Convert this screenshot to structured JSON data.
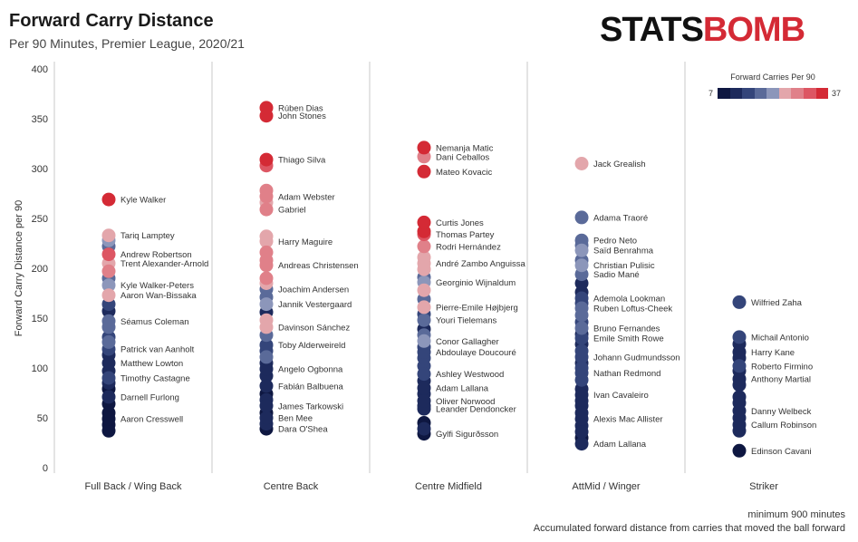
{
  "header": {
    "title": "Forward Carry Distance",
    "subtitle": "Per 90 Minutes, Premier League, 2020/21",
    "logo_part1": "STATS",
    "logo_part2": "BOMB"
  },
  "legend": {
    "title": "Forward Carries Per 90",
    "min": "7",
    "max": "37",
    "colors": [
      "#0e1741",
      "#1d2a5c",
      "#34457a",
      "#5a6a99",
      "#8c96ba",
      "#e3a6ab",
      "#e08089",
      "#dd5663",
      "#d42a35"
    ]
  },
  "notes": {
    "line1": "minimum 900 minutes",
    "line2": "Accumulated forward distance from carries that moved the ball forward"
  },
  "chart_data": {
    "type": "scatter",
    "title": "Forward Carry Distance",
    "subtitle": "Per 90 Minutes, Premier League, 2020/21",
    "xlabel": "",
    "ylabel": "Forward Carry Distance per 90",
    "ylim": [
      0,
      400
    ],
    "yticks": [
      "0",
      "50",
      "100",
      "150",
      "200",
      "250",
      "300",
      "350",
      "400"
    ],
    "categories": [
      "Full Back / Wing Back",
      "Centre Back",
      "Centre Midfield",
      "AttMid / Winger",
      "Striker"
    ],
    "grid": false,
    "legend_position": "top-right",
    "labelled_points": [
      {
        "cat": 0,
        "name": "Kyle Walker",
        "y": 269,
        "c": 36
      },
      {
        "cat": 0,
        "name": "Tariq Lamptey",
        "y": 233,
        "c": 24
      },
      {
        "cat": 0,
        "name": "Andrew Robertson",
        "y": 214,
        "c": 33
      },
      {
        "cat": 0,
        "name": "Trent Alexander-Arnold",
        "y": 205,
        "c": 25
      },
      {
        "cat": 0,
        "name": "Kyle Walker-Peters",
        "y": 183,
        "c": 21
      },
      {
        "cat": 0,
        "name": "Aaron Wan-Bissaka",
        "y": 173,
        "c": 24
      },
      {
        "cat": 0,
        "name": "Séamus Coleman",
        "y": 147,
        "c": 18
      },
      {
        "cat": 0,
        "name": "Patrick van Aanholt",
        "y": 119,
        "c": 16
      },
      {
        "cat": 0,
        "name": "Matthew Lowton",
        "y": 105,
        "c": 10
      },
      {
        "cat": 0,
        "name": "Timothy Castagne",
        "y": 90,
        "c": 14
      },
      {
        "cat": 0,
        "name": "Darnell Furlong",
        "y": 71,
        "c": 9
      },
      {
        "cat": 0,
        "name": "Aaron Cresswell",
        "y": 49,
        "c": 8
      },
      {
        "cat": 1,
        "name": "Rúben Dias",
        "y": 361,
        "c": 37
      },
      {
        "cat": 1,
        "name": "John Stones",
        "y": 353,
        "c": 36
      },
      {
        "cat": 1,
        "name": "Thiago Silva",
        "y": 309,
        "c": 36
      },
      {
        "cat": 1,
        "name": "Adam Webster",
        "y": 272,
        "c": 28
      },
      {
        "cat": 1,
        "name": "Gabriel",
        "y": 259,
        "c": 31
      },
      {
        "cat": 1,
        "name": "Harry Maguire",
        "y": 227,
        "c": 26
      },
      {
        "cat": 1,
        "name": "Andreas Christensen",
        "y": 203,
        "c": 28
      },
      {
        "cat": 1,
        "name": "Joachim Andersen",
        "y": 179,
        "c": 20
      },
      {
        "cat": 1,
        "name": "Jannik Vestergaard",
        "y": 164,
        "c": 22
      },
      {
        "cat": 1,
        "name": "Davinson Sánchez",
        "y": 141,
        "c": 24
      },
      {
        "cat": 1,
        "name": "Toby Alderweireld",
        "y": 123,
        "c": 16
      },
      {
        "cat": 1,
        "name": "Angelo Ogbonna",
        "y": 99,
        "c": 11
      },
      {
        "cat": 1,
        "name": "Fabián Balbuena",
        "y": 82,
        "c": 12
      },
      {
        "cat": 1,
        "name": "James Tarkowski",
        "y": 62,
        "c": 10
      },
      {
        "cat": 1,
        "name": "Ben Mee",
        "y": 50,
        "c": 9
      },
      {
        "cat": 1,
        "name": "Dara O'Shea",
        "y": 39,
        "c": 8
      },
      {
        "cat": 2,
        "name": "Nemanja Matic",
        "y": 321,
        "c": 36
      },
      {
        "cat": 2,
        "name": "Dani Ceballos",
        "y": 312,
        "c": 31
      },
      {
        "cat": 2,
        "name": "Mateo Kovacic",
        "y": 297,
        "c": 37
      },
      {
        "cat": 2,
        "name": "Curtis Jones",
        "y": 246,
        "c": 36
      },
      {
        "cat": 2,
        "name": "Thomas Partey",
        "y": 234,
        "c": 33
      },
      {
        "cat": 2,
        "name": "Rodri Hernández",
        "y": 222,
        "c": 31
      },
      {
        "cat": 2,
        "name": "André Zambo Anguissa",
        "y": 205,
        "c": 25
      },
      {
        "cat": 2,
        "name": "Georginio Wijnaldum",
        "y": 186,
        "c": 21
      },
      {
        "cat": 2,
        "name": "Pierre-Emile Højbjerg",
        "y": 161,
        "c": 25
      },
      {
        "cat": 2,
        "name": "Youri Tielemans",
        "y": 148,
        "c": 18
      },
      {
        "cat": 2,
        "name": "Conor Gallagher",
        "y": 127,
        "c": 21
      },
      {
        "cat": 2,
        "name": "Abdoulaye Doucouré",
        "y": 116,
        "c": 16
      },
      {
        "cat": 2,
        "name": "Ashley Westwood",
        "y": 94,
        "c": 14
      },
      {
        "cat": 2,
        "name": "Adam Lallana",
        "y": 80,
        "c": 12
      },
      {
        "cat": 2,
        "name": "Oliver Norwood",
        "y": 67,
        "c": 10
      },
      {
        "cat": 2,
        "name": "Leander Dendoncker",
        "y": 59,
        "c": 9
      },
      {
        "cat": 2,
        "name": "Gylfi Sigurðsson",
        "y": 34,
        "c": 8
      },
      {
        "cat": 3,
        "name": "Jack Grealish",
        "y": 305,
        "c": 27
      },
      {
        "cat": 3,
        "name": "Adama Traoré",
        "y": 251,
        "c": 19
      },
      {
        "cat": 3,
        "name": "Pedro Neto",
        "y": 228,
        "c": 20
      },
      {
        "cat": 3,
        "name": "Saïd Benrahma",
        "y": 218,
        "c": 22
      },
      {
        "cat": 3,
        "name": "Christian Pulisic",
        "y": 203,
        "c": 21
      },
      {
        "cat": 3,
        "name": "Sadio Mané",
        "y": 194,
        "c": 19
      },
      {
        "cat": 3,
        "name": "Ademola Lookman",
        "y": 170,
        "c": 16
      },
      {
        "cat": 3,
        "name": "Ruben Loftus-Cheek",
        "y": 160,
        "c": 17
      },
      {
        "cat": 3,
        "name": "Bruno Fernandes",
        "y": 140,
        "c": 18
      },
      {
        "cat": 3,
        "name": "Emile Smith Rowe",
        "y": 130,
        "c": 15
      },
      {
        "cat": 3,
        "name": "Johann Gudmundsson",
        "y": 111,
        "c": 13
      },
      {
        "cat": 3,
        "name": "Nathan Redmond",
        "y": 95,
        "c": 14
      },
      {
        "cat": 3,
        "name": "Ivan Cavaleiro",
        "y": 73,
        "c": 11
      },
      {
        "cat": 3,
        "name": "Alexis Mac Allister",
        "y": 49,
        "c": 10
      },
      {
        "cat": 3,
        "name": "Adam Lallana",
        "y": 24,
        "c": 9
      },
      {
        "cat": 4,
        "name": "Wilfried Zaha",
        "y": 166,
        "c": 16
      },
      {
        "cat": 4,
        "name": "Michail Antonio",
        "y": 131,
        "c": 15
      },
      {
        "cat": 4,
        "name": "Harry Kane",
        "y": 116,
        "c": 11
      },
      {
        "cat": 4,
        "name": "Roberto Firmino",
        "y": 102,
        "c": 13
      },
      {
        "cat": 4,
        "name": "Anthony Martial",
        "y": 89,
        "c": 12
      },
      {
        "cat": 4,
        "name": "Danny Welbeck",
        "y": 57,
        "c": 10
      },
      {
        "cat": 4,
        "name": "Callum Robinson",
        "y": 43,
        "c": 9
      },
      {
        "cat": 4,
        "name": "Edinson Cavani",
        "y": 17,
        "c": 8
      }
    ],
    "unlabelled_points": [
      {
        "cat": 0,
        "y": 228,
        "c": 22
      },
      {
        "cat": 0,
        "y": 222,
        "c": 20
      },
      {
        "cat": 0,
        "y": 197,
        "c": 28
      },
      {
        "cat": 0,
        "y": 190,
        "c": 20
      },
      {
        "cat": 0,
        "y": 164,
        "c": 16
      },
      {
        "cat": 0,
        "y": 157,
        "c": 12
      },
      {
        "cat": 0,
        "y": 141,
        "c": 18
      },
      {
        "cat": 0,
        "y": 131,
        "c": 14
      },
      {
        "cat": 0,
        "y": 126,
        "c": 17
      },
      {
        "cat": 0,
        "y": 113,
        "c": 9
      },
      {
        "cat": 0,
        "y": 97,
        "c": 10
      },
      {
        "cat": 0,
        "y": 85,
        "c": 9
      },
      {
        "cat": 0,
        "y": 79,
        "c": 8
      },
      {
        "cat": 0,
        "y": 64,
        "c": 8
      },
      {
        "cat": 0,
        "y": 55,
        "c": 8
      },
      {
        "cat": 0,
        "y": 43,
        "c": 7
      },
      {
        "cat": 0,
        "y": 37,
        "c": 8
      },
      {
        "cat": 1,
        "y": 303,
        "c": 35
      },
      {
        "cat": 1,
        "y": 278,
        "c": 30
      },
      {
        "cat": 1,
        "y": 266,
        "c": 26
      },
      {
        "cat": 1,
        "y": 232,
        "c": 25
      },
      {
        "cat": 1,
        "y": 216,
        "c": 29
      },
      {
        "cat": 1,
        "y": 208,
        "c": 31
      },
      {
        "cat": 1,
        "y": 190,
        "c": 30
      },
      {
        "cat": 1,
        "y": 185,
        "c": 24
      },
      {
        "cat": 1,
        "y": 171,
        "c": 18
      },
      {
        "cat": 1,
        "y": 156,
        "c": 12
      },
      {
        "cat": 1,
        "y": 148,
        "c": 24
      },
      {
        "cat": 1,
        "y": 133,
        "c": 17
      },
      {
        "cat": 1,
        "y": 117,
        "c": 15
      },
      {
        "cat": 1,
        "y": 111,
        "c": 17
      },
      {
        "cat": 1,
        "y": 105,
        "c": 9
      },
      {
        "cat": 1,
        "y": 92,
        "c": 10
      },
      {
        "cat": 1,
        "y": 74,
        "c": 8
      },
      {
        "cat": 1,
        "y": 68,
        "c": 9
      },
      {
        "cat": 1,
        "y": 55,
        "c": 8
      },
      {
        "cat": 1,
        "y": 44,
        "c": 9
      },
      {
        "cat": 2,
        "y": 237,
        "c": 36
      },
      {
        "cat": 2,
        "y": 211,
        "c": 27
      },
      {
        "cat": 2,
        "y": 199,
        "c": 24
      },
      {
        "cat": 2,
        "y": 191,
        "c": 19
      },
      {
        "cat": 2,
        "y": 178,
        "c": 25
      },
      {
        "cat": 2,
        "y": 169,
        "c": 18
      },
      {
        "cat": 2,
        "y": 154,
        "c": 16
      },
      {
        "cat": 2,
        "y": 139,
        "c": 10
      },
      {
        "cat": 2,
        "y": 133,
        "c": 18
      },
      {
        "cat": 2,
        "y": 121,
        "c": 15
      },
      {
        "cat": 2,
        "y": 110,
        "c": 16
      },
      {
        "cat": 2,
        "y": 102,
        "c": 14
      },
      {
        "cat": 2,
        "y": 87,
        "c": 11
      },
      {
        "cat": 2,
        "y": 74,
        "c": 10
      },
      {
        "cat": 2,
        "y": 62,
        "c": 9
      },
      {
        "cat": 2,
        "y": 45,
        "c": 8
      },
      {
        "cat": 2,
        "y": 39,
        "c": 9
      },
      {
        "cat": 3,
        "y": 223,
        "c": 20
      },
      {
        "cat": 3,
        "y": 208,
        "c": 20
      },
      {
        "cat": 3,
        "y": 185,
        "c": 12
      },
      {
        "cat": 3,
        "y": 176,
        "c": 11
      },
      {
        "cat": 3,
        "y": 165,
        "c": 14
      },
      {
        "cat": 3,
        "y": 153,
        "c": 18
      },
      {
        "cat": 3,
        "y": 146,
        "c": 16
      },
      {
        "cat": 3,
        "y": 134,
        "c": 9
      },
      {
        "cat": 3,
        "y": 124,
        "c": 10
      },
      {
        "cat": 3,
        "y": 117,
        "c": 14
      },
      {
        "cat": 3,
        "y": 105,
        "c": 11
      },
      {
        "cat": 3,
        "y": 100,
        "c": 16
      },
      {
        "cat": 3,
        "y": 88,
        "c": 15
      },
      {
        "cat": 3,
        "y": 79,
        "c": 9
      },
      {
        "cat": 3,
        "y": 67,
        "c": 10
      },
      {
        "cat": 3,
        "y": 62,
        "c": 9
      },
      {
        "cat": 3,
        "y": 55,
        "c": 10
      },
      {
        "cat": 3,
        "y": 42,
        "c": 9
      },
      {
        "cat": 3,
        "y": 36,
        "c": 10
      },
      {
        "cat": 3,
        "y": 30,
        "c": 8
      },
      {
        "cat": 4,
        "y": 124,
        "c": 10
      },
      {
        "cat": 4,
        "y": 110,
        "c": 12
      },
      {
        "cat": 4,
        "y": 97,
        "c": 10
      },
      {
        "cat": 4,
        "y": 83,
        "c": 9
      },
      {
        "cat": 4,
        "y": 71,
        "c": 9
      },
      {
        "cat": 4,
        "y": 65,
        "c": 10
      },
      {
        "cat": 4,
        "y": 50,
        "c": 9
      },
      {
        "cat": 4,
        "y": 37,
        "c": 9
      }
    ]
  }
}
